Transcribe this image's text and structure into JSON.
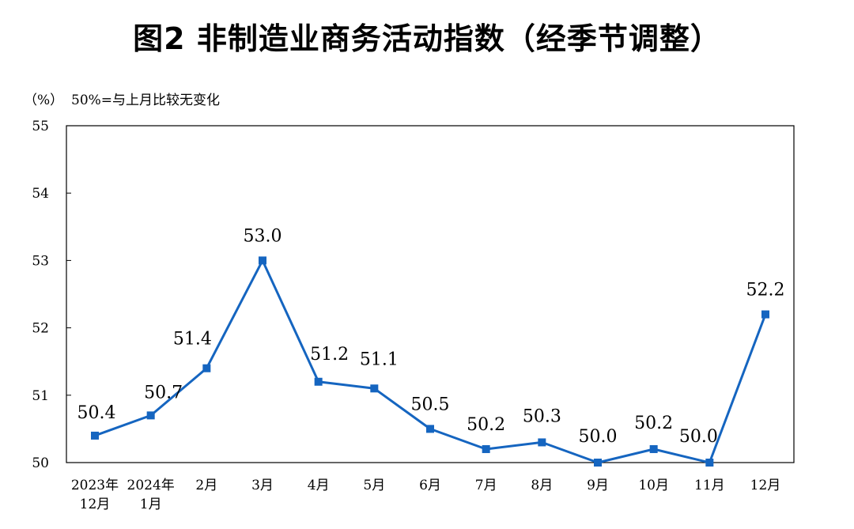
{
  "header": {
    "title": "图2  非制造业商务活动指数（经季节调整）",
    "unit": "（%）",
    "note": "50%=与上月比较无变化"
  },
  "colors": {
    "line": "#1565c0",
    "marker": "#1565c0",
    "axis": "#000000"
  },
  "chart_data": {
    "type": "line",
    "title": "图2  非制造业商务活动指数（经季节调整）",
    "xlabel": "",
    "ylabel": "（%）",
    "ylim": [
      50,
      55
    ],
    "yticks": [
      50,
      51,
      52,
      53,
      54,
      55
    ],
    "grid": false,
    "categories": [
      [
        "2023年",
        "12月"
      ],
      [
        "2024年",
        "1月"
      ],
      [
        "2月"
      ],
      [
        "3月"
      ],
      [
        "4月"
      ],
      [
        "5月"
      ],
      [
        "6月"
      ],
      [
        "7月"
      ],
      [
        "8月"
      ],
      [
        "9月"
      ],
      [
        "10月"
      ],
      [
        "11月"
      ],
      [
        "12月"
      ]
    ],
    "series": [
      {
        "values": [
          50.4,
          50.7,
          51.4,
          53.0,
          51.2,
          51.1,
          50.5,
          50.2,
          50.3,
          50.0,
          50.2,
          50.0,
          52.2
        ]
      }
    ],
    "data_labels": [
      "50.4",
      "50.7",
      "51.4",
      "53.0",
      "51.2",
      "51.1",
      "50.5",
      "50.2",
      "50.3",
      "50.0",
      "50.2",
      "50.0",
      "52.2"
    ]
  }
}
